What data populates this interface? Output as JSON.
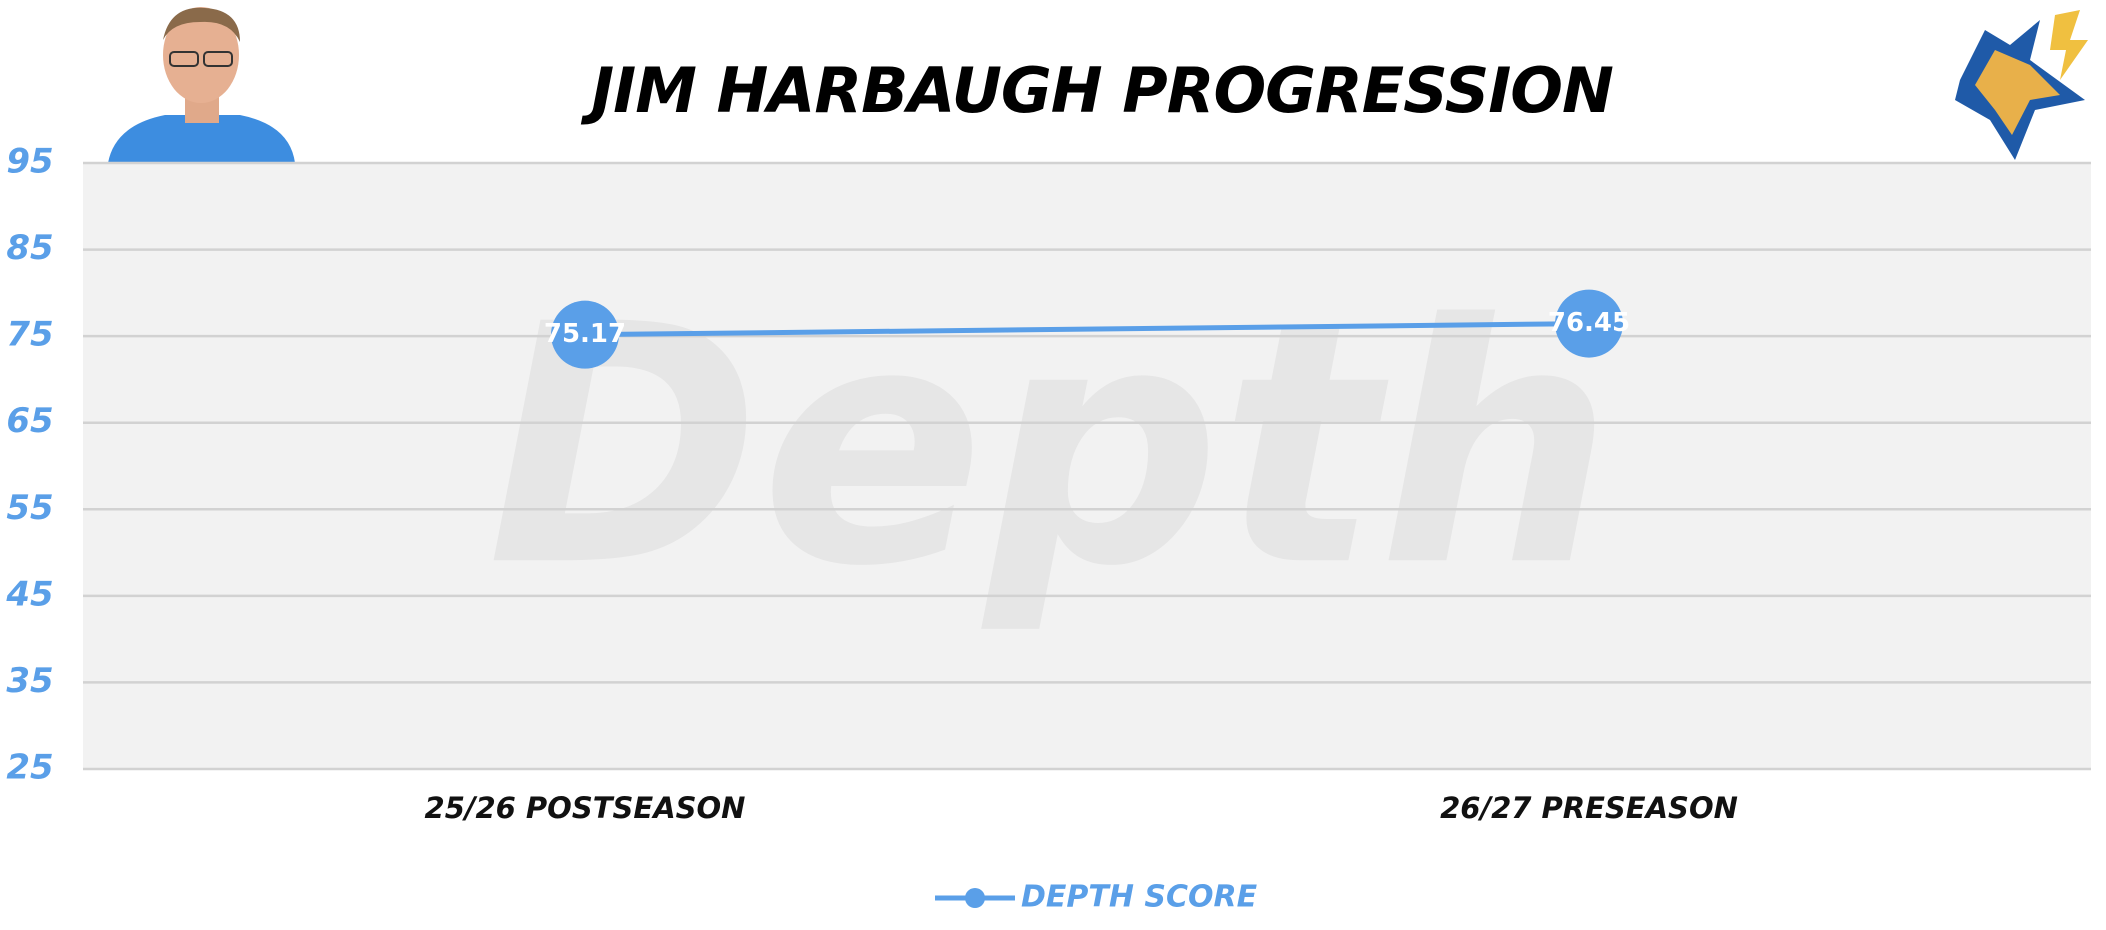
{
  "chart_data": {
    "type": "line",
    "title": "JIM HARBAUGH PROGRESSION",
    "watermark": "Depth",
    "categories": [
      "25/26 POSTSEASON",
      "26/27 PRESEASON"
    ],
    "series": [
      {
        "name": "DEPTH SCORE",
        "color": "#5a9fe8",
        "values": [
          75.17,
          76.45
        ]
      }
    ],
    "ylim": [
      25,
      95
    ],
    "yticks": [
      25,
      35,
      45,
      55,
      65,
      75,
      85,
      95
    ],
    "grid": true,
    "legend": "bottom"
  }
}
